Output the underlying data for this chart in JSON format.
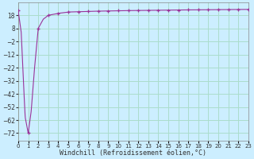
{
  "xlabel": "Windchill (Refroidissement éolien,°C)",
  "bg_color": "#cceeff",
  "grid_color": "#aaddcc",
  "line_color": "#993399",
  "marker_color": "#993399",
  "ylim": [
    -78,
    28
  ],
  "xlim": [
    0,
    23
  ],
  "yticks": [
    18,
    8,
    -2,
    -12,
    -22,
    -32,
    -42,
    -52,
    -62,
    -72
  ],
  "xtick_labels": [
    "0",
    "1",
    "2",
    "3",
    "4",
    "5",
    "6",
    "7",
    "8",
    "9",
    "10",
    "11",
    "12",
    "13",
    "14",
    "15",
    "16",
    "17",
    "18",
    "19",
    "20",
    "21",
    "22",
    "23"
  ],
  "air_temp": 21.5,
  "tick_fontsize": 5.5,
  "axis_fontsize": 6
}
